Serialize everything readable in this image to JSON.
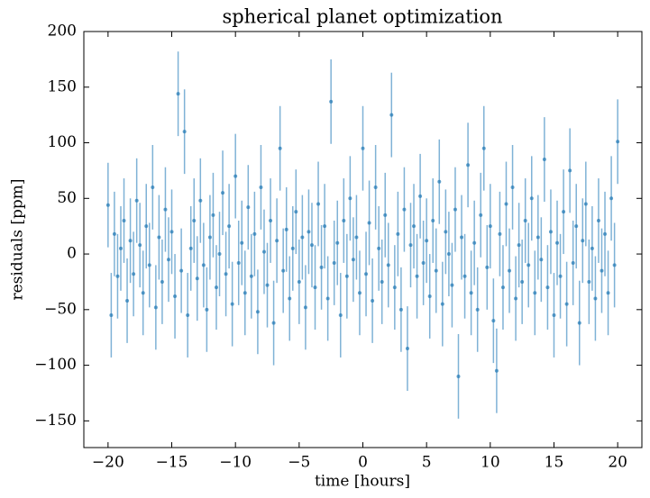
{
  "chart_data": {
    "type": "errorbar-scatter",
    "title": "spherical planet optimization",
    "xlabel": "time [hours]",
    "ylabel": "residuals [ppm]",
    "color": "#1f77b4",
    "error_color": "#7fb2d6",
    "error": 38,
    "xlim": [
      -21.9,
      21.9
    ],
    "ylim": [
      -174,
      200
    ],
    "xticks": [
      {
        "value": -20,
        "label": "−20"
      },
      {
        "value": -15,
        "label": "−15"
      },
      {
        "value": -10,
        "label": "−10"
      },
      {
        "value": -5,
        "label": "−5"
      },
      0,
      5,
      10,
      15,
      20
    ],
    "yticks": [
      {
        "value": -150,
        "label": "−150"
      },
      {
        "value": -100,
        "label": "−100"
      },
      {
        "value": -50,
        "label": "−50"
      },
      0,
      50,
      100,
      150,
      200
    ],
    "x": [
      -20,
      -19.75,
      -19.5,
      -19.25,
      -19,
      -18.75,
      -18.5,
      -18.25,
      -18,
      -17.75,
      -17.5,
      -17.25,
      -17,
      -16.75,
      -16.5,
      -16.25,
      -16,
      -15.75,
      -15.5,
      -15.25,
      -15,
      -14.75,
      -14.5,
      -14.25,
      -14,
      -13.75,
      -13.5,
      -13.25,
      -13,
      -12.75,
      -12.5,
      -12.25,
      -12,
      -11.75,
      -11.5,
      -11.25,
      -11,
      -10.75,
      -10.5,
      -10.25,
      -10,
      -9.75,
      -9.5,
      -9.25,
      -9,
      -8.75,
      -8.5,
      -8.25,
      -8,
      -7.75,
      -7.5,
      -7.25,
      -7,
      -6.75,
      -6.5,
      -6.25,
      -6,
      -5.75,
      -5.5,
      -5.25,
      -5,
      -4.75,
      -4.5,
      -4.25,
      -4,
      -3.75,
      -3.5,
      -3.25,
      -3,
      -2.75,
      -2.5,
      -2.25,
      -2,
      -1.75,
      -1.5,
      -1.25,
      -1,
      -0.75,
      -0.5,
      -0.25,
      0,
      0.25,
      0.5,
      0.75,
      1,
      1.25,
      1.5,
      1.75,
      2,
      2.25,
      2.5,
      2.75,
      3,
      3.25,
      3.5,
      3.75,
      4,
      4.25,
      4.5,
      4.75,
      5,
      5.25,
      5.5,
      5.75,
      6,
      6.25,
      6.5,
      6.75,
      7,
      7.25,
      7.5,
      7.75,
      8,
      8.25,
      8.5,
      8.75,
      9,
      9.25,
      9.5,
      9.75,
      10,
      10.25,
      10.5,
      10.75,
      11,
      11.25,
      11.5,
      11.75,
      12,
      12.25,
      12.5,
      12.75,
      13,
      13.25,
      13.5,
      13.75,
      14,
      14.25,
      14.5,
      14.75,
      15,
      15.25,
      15.5,
      15.75,
      16,
      16.25,
      16.5,
      16.75,
      17,
      17.25,
      17.5,
      17.75,
      18,
      18.25,
      18.5,
      18.75,
      19,
      19.25,
      19.5,
      19.75,
      20
    ],
    "values": [
      44,
      -55,
      18,
      -20,
      5,
      30,
      -42,
      12,
      -18,
      48,
      8,
      -35,
      25,
      -10,
      60,
      -48,
      15,
      -25,
      40,
      -5,
      20,
      -38,
      144,
      -15,
      110,
      -55,
      5,
      30,
      -22,
      48,
      -10,
      -50,
      15,
      35,
      -30,
      0,
      55,
      -18,
      25,
      -45,
      70,
      -8,
      10,
      -35,
      42,
      -20,
      18,
      -52,
      60,
      2,
      -28,
      30,
      -62,
      12,
      95,
      -15,
      22,
      -40,
      5,
      38,
      -25,
      15,
      -48,
      20,
      8,
      -30,
      45,
      -12,
      25,
      -40,
      137,
      -8,
      10,
      -55,
      30,
      -20,
      50,
      -5,
      15,
      -35,
      95,
      -18,
      28,
      -42,
      60,
      5,
      -25,
      35,
      -10,
      125,
      -30,
      18,
      -50,
      40,
      -85,
      8,
      25,
      -20,
      52,
      -8,
      12,
      -38,
      30,
      -15,
      65,
      -45,
      20,
      0,
      -28,
      40,
      -110,
      15,
      -20,
      80,
      -35,
      10,
      -50,
      35,
      95,
      -12,
      25,
      -60,
      -105,
      18,
      -30,
      45,
      -15,
      60,
      -40,
      8,
      -25,
      30,
      -10,
      50,
      -35,
      15,
      -5,
      85,
      -30,
      20,
      -55,
      10,
      -20,
      38,
      -45,
      75,
      -8,
      25,
      -62,
      12,
      45,
      -25,
      5,
      -40,
      30,
      -15,
      18,
      -35,
      50,
      -10,
      101
    ]
  }
}
